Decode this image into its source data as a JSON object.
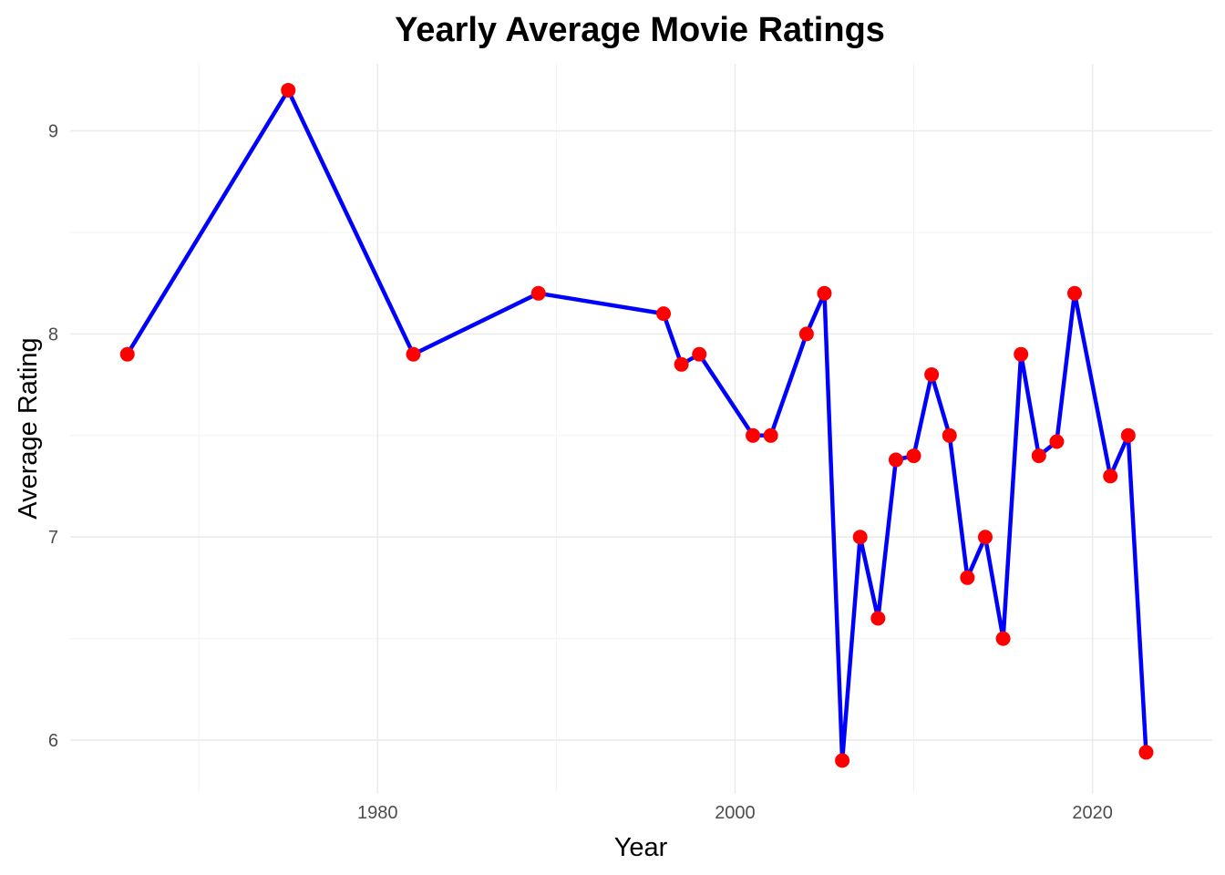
{
  "chart_data": {
    "type": "line",
    "title": "Yearly Average Movie Ratings",
    "xlabel": "Year",
    "ylabel": "Average Rating",
    "xlim": [
      1962.8,
      2026.7
    ],
    "ylim": [
      5.74,
      9.33
    ],
    "x_ticks": [
      1980,
      2000,
      2020
    ],
    "x_minor_ticks": [
      1970,
      1990,
      2010
    ],
    "y_ticks": [
      6,
      7,
      8,
      9
    ],
    "y_minor_ticks": [
      6.5,
      7.5,
      8.5
    ],
    "grid": true,
    "legend": "none",
    "line_color": "#0000ff",
    "point_color": "#ff0000",
    "series": [
      {
        "x": [
          1966,
          1975,
          1982,
          1989,
          1996,
          1997,
          1998,
          2001,
          2002,
          2004,
          2005,
          2006,
          2007,
          2008,
          2009,
          2010,
          2011,
          2012,
          2013,
          2014,
          2015,
          2016,
          2017,
          2018,
          2019,
          2021,
          2022,
          2023
        ],
        "y": [
          7.9,
          9.2,
          7.9,
          8.2,
          8.1,
          7.85,
          7.9,
          7.5,
          7.5,
          8.0,
          8.2,
          5.9,
          7.0,
          6.6,
          7.38,
          7.4,
          7.8,
          7.5,
          6.8,
          7.0,
          6.5,
          7.9,
          7.4,
          7.47,
          8.2,
          7.3,
          7.5,
          5.94
        ]
      }
    ]
  }
}
